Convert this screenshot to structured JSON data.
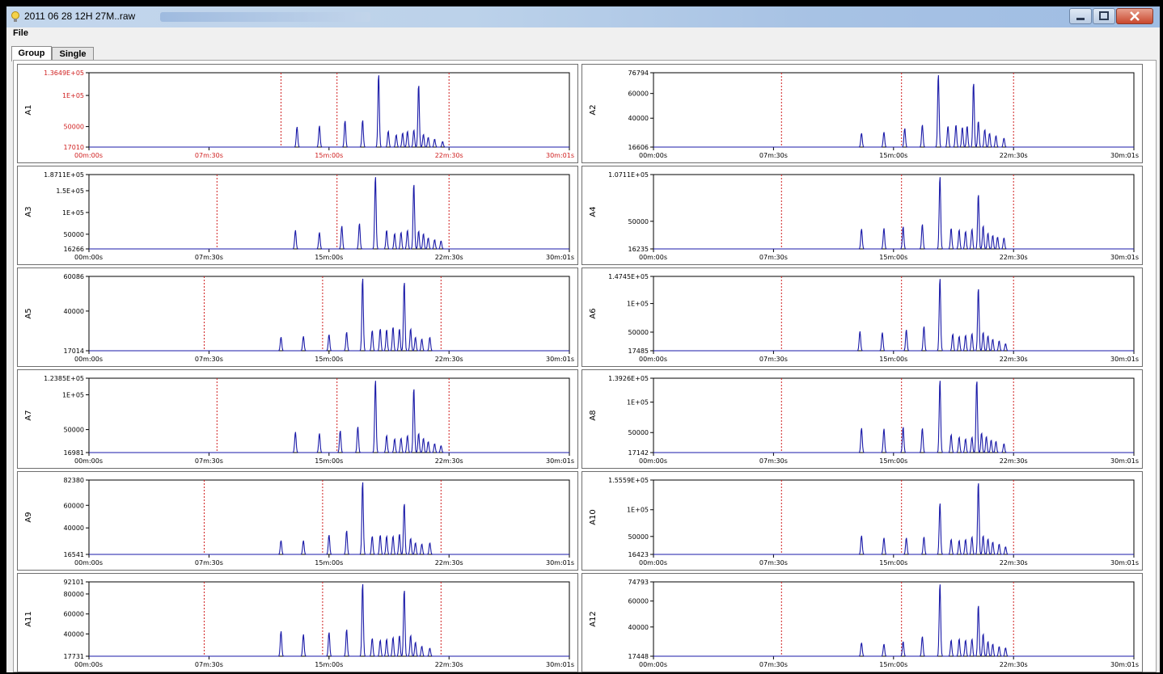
{
  "window": {
    "title": "2011 06 28 12H 27M..raw",
    "icon": "app-bulb-icon"
  },
  "menu": {
    "file": "File"
  },
  "tabs": [
    {
      "label": "Group",
      "active": true
    },
    {
      "label": "Single",
      "active": false
    }
  ],
  "x_tick_labels": [
    "00m:00s",
    "07m:30s",
    "15m:00s",
    "22m:30s",
    "30m:01s"
  ],
  "colors": {
    "trace": "#1a1aa8",
    "dashed": "#d02020",
    "red_text": "#d02020"
  },
  "chart_data": [
    {
      "type": "line",
      "name": "A1",
      "ylabel": "A1",
      "ytick_labels": [
        "1.3649E+05",
        "1E+05",
        "50000",
        "17010"
      ],
      "y_values": [
        136490,
        100000,
        50000,
        17010
      ],
      "ylim": [
        17010,
        136490
      ],
      "xlim": [
        0,
        30.02
      ],
      "dashed_x": [
        12.0,
        15.5,
        22.5
      ],
      "peaks": [
        [
          13.0,
          50000
        ],
        [
          14.4,
          52000
        ],
        [
          16.0,
          60000
        ],
        [
          17.1,
          61000
        ],
        [
          18.1,
          136490
        ],
        [
          18.7,
          43000
        ],
        [
          19.2,
          37000
        ],
        [
          19.6,
          40000
        ],
        [
          19.9,
          43000
        ],
        [
          20.3,
          45000
        ],
        [
          20.6,
          120000
        ],
        [
          20.9,
          38000
        ],
        [
          21.2,
          33000
        ],
        [
          21.6,
          30000
        ],
        [
          22.1,
          26000
        ]
      ]
    },
    {
      "type": "line",
      "name": "A2",
      "ylabel": "A2",
      "ytick_labels": [
        "76794",
        "60000",
        "40000",
        "16606"
      ],
      "y_values": [
        76794,
        60000,
        40000,
        16606
      ],
      "ylim": [
        16606,
        76794
      ],
      "xlim": [
        0,
        30.02
      ],
      "dashed_x": [
        8.0,
        15.5,
        22.5
      ],
      "peaks": [
        [
          13.0,
          28000
        ],
        [
          14.4,
          29000
        ],
        [
          15.7,
          32000
        ],
        [
          16.8,
          35000
        ],
        [
          17.8,
          76794
        ],
        [
          18.4,
          34000
        ],
        [
          18.9,
          35000
        ],
        [
          19.3,
          33000
        ],
        [
          19.6,
          34000
        ],
        [
          20.0,
          70000
        ],
        [
          20.3,
          38000
        ],
        [
          20.7,
          31000
        ],
        [
          21.0,
          28000
        ],
        [
          21.4,
          26000
        ],
        [
          21.9,
          24000
        ]
      ]
    },
    {
      "type": "line",
      "name": "A3",
      "ylabel": "A3",
      "ytick_labels": [
        "1.8711E+05",
        "1.5E+05",
        "1E+05",
        "50000",
        "16266"
      ],
      "y_values": [
        187110,
        150000,
        100000,
        50000,
        16266
      ],
      "ylim": [
        16266,
        187110
      ],
      "xlim": [
        0,
        30.02
      ],
      "dashed_x": [
        8.0,
        15.5,
        22.5
      ],
      "peaks": [
        [
          12.9,
          60000
        ],
        [
          14.4,
          55000
        ],
        [
          15.8,
          70000
        ],
        [
          16.9,
          76000
        ],
        [
          17.9,
          187110
        ],
        [
          18.6,
          60000
        ],
        [
          19.1,
          52000
        ],
        [
          19.5,
          55000
        ],
        [
          19.9,
          60000
        ],
        [
          20.3,
          170000
        ],
        [
          20.6,
          58000
        ],
        [
          20.9,
          52000
        ],
        [
          21.2,
          42000
        ],
        [
          21.6,
          38000
        ],
        [
          22.0,
          35000
        ]
      ]
    },
    {
      "type": "line",
      "name": "A4",
      "ylabel": "A4",
      "ytick_labels": [
        "1.0711E+05",
        "50000",
        "16235"
      ],
      "y_values": [
        107110,
        50000,
        16235
      ],
      "ylim": [
        16235,
        107110
      ],
      "xlim": [
        0,
        30.02
      ],
      "dashed_x": [
        8.0,
        15.5,
        22.5
      ],
      "peaks": [
        [
          13.0,
          41000
        ],
        [
          14.4,
          42000
        ],
        [
          15.6,
          44000
        ],
        [
          16.8,
          47000
        ],
        [
          17.9,
          107110
        ],
        [
          18.6,
          42000
        ],
        [
          19.1,
          40000
        ],
        [
          19.5,
          38000
        ],
        [
          19.9,
          41000
        ],
        [
          20.3,
          85000
        ],
        [
          20.6,
          45000
        ],
        [
          20.9,
          36000
        ],
        [
          21.2,
          33000
        ],
        [
          21.5,
          31000
        ],
        [
          21.9,
          30000
        ]
      ]
    },
    {
      "type": "line",
      "name": "A5",
      "ylabel": "A5",
      "ytick_labels": [
        "60086",
        "40000",
        "17014"
      ],
      "y_values": [
        60086,
        40000,
        17014
      ],
      "ylim": [
        17014,
        60086
      ],
      "xlim": [
        0,
        30.02
      ],
      "dashed_x": [
        7.2,
        14.6,
        22.0
      ],
      "peaks": [
        [
          12.0,
          25000
        ],
        [
          13.4,
          25500
        ],
        [
          15.0,
          26500
        ],
        [
          16.1,
          28000
        ],
        [
          17.1,
          60086
        ],
        [
          17.7,
          29000
        ],
        [
          18.2,
          30000
        ],
        [
          18.6,
          29500
        ],
        [
          19.0,
          31000
        ],
        [
          19.4,
          30000
        ],
        [
          19.7,
          58000
        ],
        [
          20.1,
          30000
        ],
        [
          20.4,
          25000
        ],
        [
          20.8,
          24000
        ],
        [
          21.3,
          25000
        ]
      ]
    },
    {
      "type": "line",
      "name": "A6",
      "ylabel": "A6",
      "ytick_labels": [
        "1.4745E+05",
        "1E+05",
        "50000",
        "17485"
      ],
      "y_values": [
        147450,
        100000,
        50000,
        17485
      ],
      "ylim": [
        17485,
        147450
      ],
      "xlim": [
        0,
        30.02
      ],
      "dashed_x": [
        8.0,
        15.5,
        22.5
      ],
      "peaks": [
        [
          12.9,
          52000
        ],
        [
          14.3,
          50000
        ],
        [
          15.8,
          55000
        ],
        [
          16.9,
          61000
        ],
        [
          17.9,
          147450
        ],
        [
          18.7,
          47000
        ],
        [
          19.1,
          43000
        ],
        [
          19.5,
          45000
        ],
        [
          19.9,
          48000
        ],
        [
          20.3,
          130000
        ],
        [
          20.6,
          50000
        ],
        [
          20.9,
          44000
        ],
        [
          21.2,
          38000
        ],
        [
          21.6,
          35000
        ],
        [
          22.0,
          30000
        ]
      ]
    },
    {
      "type": "line",
      "name": "A7",
      "ylabel": "A7",
      "ytick_labels": [
        "1.2385E+05",
        "1E+05",
        "50000",
        "16981"
      ],
      "y_values": [
        123850,
        100000,
        50000,
        16981
      ],
      "ylim": [
        16981,
        123850
      ],
      "xlim": [
        0,
        30.02
      ],
      "dashed_x": [
        8.0,
        15.5,
        22.5
      ],
      "peaks": [
        [
          12.9,
          47000
        ],
        [
          14.4,
          45000
        ],
        [
          15.7,
          49000
        ],
        [
          16.8,
          55000
        ],
        [
          17.9,
          123850
        ],
        [
          18.6,
          42000
        ],
        [
          19.1,
          37000
        ],
        [
          19.5,
          38000
        ],
        [
          19.9,
          42000
        ],
        [
          20.3,
          112000
        ],
        [
          20.6,
          45000
        ],
        [
          20.9,
          38000
        ],
        [
          21.2,
          33000
        ],
        [
          21.6,
          30000
        ],
        [
          22.0,
          27000
        ]
      ]
    },
    {
      "type": "line",
      "name": "A8",
      "ylabel": "A8",
      "ytick_labels": [
        "1.3926E+05",
        "1E+05",
        "50000",
        "17142"
      ],
      "y_values": [
        139260,
        100000,
        50000,
        17142
      ],
      "ylim": [
        17142,
        139260
      ],
      "xlim": [
        0,
        30.02
      ],
      "dashed_x": [
        8.0,
        15.5,
        22.5
      ],
      "peaks": [
        [
          13.0,
          58000
        ],
        [
          14.4,
          57000
        ],
        [
          15.6,
          60000
        ],
        [
          16.8,
          58000
        ],
        [
          17.9,
          139260
        ],
        [
          18.6,
          47000
        ],
        [
          19.1,
          43000
        ],
        [
          19.5,
          40000
        ],
        [
          19.9,
          43000
        ],
        [
          20.2,
          139000
        ],
        [
          20.5,
          50000
        ],
        [
          20.8,
          44000
        ],
        [
          21.1,
          38000
        ],
        [
          21.4,
          36000
        ],
        [
          21.9,
          32000
        ]
      ]
    },
    {
      "type": "line",
      "name": "A9",
      "ylabel": "A9",
      "ytick_labels": [
        "82380",
        "60000",
        "40000",
        "16541"
      ],
      "y_values": [
        82380,
        60000,
        40000,
        16541
      ],
      "ylim": [
        16541,
        82380
      ],
      "xlim": [
        0,
        30.02
      ],
      "dashed_x": [
        7.2,
        14.6,
        22.0
      ],
      "peaks": [
        [
          12.0,
          29000
        ],
        [
          13.4,
          29000
        ],
        [
          15.0,
          34000
        ],
        [
          16.1,
          38000
        ],
        [
          17.1,
          82380
        ],
        [
          17.7,
          33000
        ],
        [
          18.2,
          34000
        ],
        [
          18.6,
          33000
        ],
        [
          19.0,
          33000
        ],
        [
          19.4,
          35000
        ],
        [
          19.7,
          63000
        ],
        [
          20.1,
          31000
        ],
        [
          20.4,
          27000
        ],
        [
          20.8,
          26000
        ],
        [
          21.3,
          27000
        ]
      ]
    },
    {
      "type": "line",
      "name": "A10",
      "ylabel": "A10",
      "ytick_labels": [
        "1.5559E+05",
        "1E+05",
        "50000",
        "16423"
      ],
      "y_values": [
        155590,
        100000,
        50000,
        16423
      ],
      "ylim": [
        16423,
        155590
      ],
      "xlim": [
        0,
        30.02
      ],
      "dashed_x": [
        8.0,
        15.5,
        22.5
      ],
      "peaks": [
        [
          13.0,
          52000
        ],
        [
          14.4,
          48000
        ],
        [
          15.8,
          48000
        ],
        [
          16.9,
          50000
        ],
        [
          17.9,
          115000
        ],
        [
          18.6,
          45000
        ],
        [
          19.1,
          43000
        ],
        [
          19.5,
          45000
        ],
        [
          19.9,
          50000
        ],
        [
          20.3,
          155590
        ],
        [
          20.6,
          52000
        ],
        [
          20.9,
          46000
        ],
        [
          21.2,
          40000
        ],
        [
          21.6,
          36000
        ],
        [
          22.0,
          31000
        ]
      ]
    },
    {
      "type": "line",
      "name": "A11",
      "ylabel": "A11",
      "ytick_labels": [
        "92101",
        "80000",
        "60000",
        "40000",
        "17731"
      ],
      "y_values": [
        92101,
        80000,
        60000,
        40000,
        17731
      ],
      "ylim": [
        17731,
        92101
      ],
      "xlim": [
        0,
        30.02
      ],
      "dashed_x": [
        7.2,
        14.6,
        22.0
      ],
      "peaks": [
        [
          12.0,
          43000
        ],
        [
          13.4,
          40000
        ],
        [
          15.0,
          42000
        ],
        [
          16.1,
          45000
        ],
        [
          17.1,
          92101
        ],
        [
          17.7,
          36000
        ],
        [
          18.2,
          34000
        ],
        [
          18.6,
          35000
        ],
        [
          19.0,
          37000
        ],
        [
          19.4,
          39000
        ],
        [
          19.7,
          86000
        ],
        [
          20.1,
          39000
        ],
        [
          20.4,
          32000
        ],
        [
          20.8,
          28000
        ],
        [
          21.3,
          26000
        ]
      ]
    },
    {
      "type": "line",
      "name": "A12",
      "ylabel": "A12",
      "ytick_labels": [
        "74793",
        "60000",
        "40000",
        "17448"
      ],
      "y_values": [
        74793,
        60000,
        40000,
        17448
      ],
      "ylim": [
        17448,
        74793
      ],
      "xlim": [
        0,
        30.02
      ],
      "dashed_x": [
        8.0,
        15.5,
        22.5
      ],
      "peaks": [
        [
          13.0,
          28000
        ],
        [
          14.4,
          27000
        ],
        [
          15.6,
          29000
        ],
        [
          16.8,
          33000
        ],
        [
          17.9,
          74793
        ],
        [
          18.6,
          30000
        ],
        [
          19.1,
          31000
        ],
        [
          19.5,
          30000
        ],
        [
          19.9,
          31000
        ],
        [
          20.3,
          58000
        ],
        [
          20.6,
          35000
        ],
        [
          20.9,
          29000
        ],
        [
          21.2,
          27000
        ],
        [
          21.6,
          25000
        ],
        [
          22.0,
          24000
        ]
      ]
    }
  ]
}
